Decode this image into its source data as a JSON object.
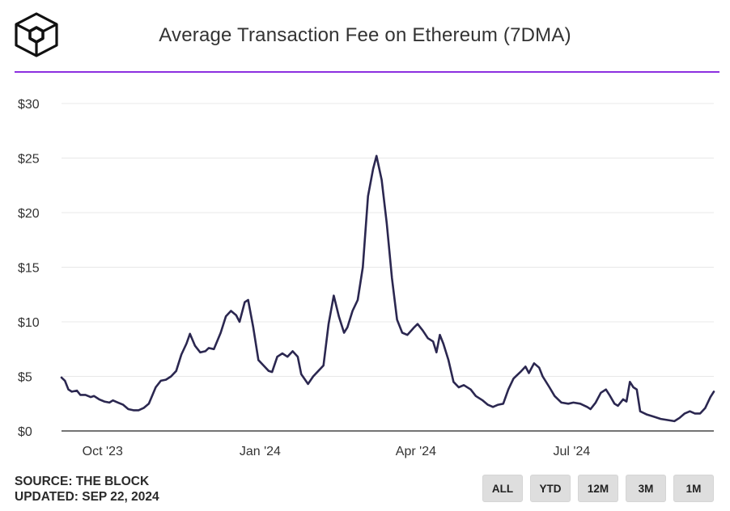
{
  "header": {
    "title": "Average Transaction Fee on Ethereum (7DMA)",
    "logo": "the-block-cube-logo"
  },
  "footer": {
    "source": "SOURCE: THE BLOCK",
    "updated": "UPDATED: SEP 22, 2024"
  },
  "range_buttons": [
    "ALL",
    "YTD",
    "12M",
    "3M",
    "1M"
  ],
  "colors": {
    "accent": "#8c2fe0",
    "line": "#2b2750",
    "grid": "#e8e8e8"
  },
  "chart_data": {
    "type": "line",
    "title": "Average Transaction Fee on Ethereum (7DMA)",
    "x_start": "2023-09-07",
    "x_end": "2024-09-22",
    "ylim": [
      0,
      30
    ],
    "y_ticks": [
      0,
      5,
      10,
      15,
      20,
      25,
      30
    ],
    "y_tick_labels": [
      "$0",
      "$5",
      "$10",
      "$15",
      "$20",
      "$25",
      "$30"
    ],
    "x_ticks": [
      {
        "date": "2023-10-01",
        "label": "Oct '23"
      },
      {
        "date": "2024-01-01",
        "label": "Jan '24"
      },
      {
        "date": "2024-04-01",
        "label": "Apr '24"
      },
      {
        "date": "2024-07-01",
        "label": "Jul '24"
      }
    ],
    "grid": "horizontal",
    "series": [
      {
        "points": [
          [
            "2023-09-07",
            4.9
          ],
          [
            "2023-09-09",
            4.6
          ],
          [
            "2023-09-11",
            3.8
          ],
          [
            "2023-09-13",
            3.6
          ],
          [
            "2023-09-16",
            3.7
          ],
          [
            "2023-09-18",
            3.3
          ],
          [
            "2023-09-21",
            3.3
          ],
          [
            "2023-09-24",
            3.1
          ],
          [
            "2023-09-26",
            3.2
          ],
          [
            "2023-09-29",
            2.9
          ],
          [
            "2023-10-02",
            2.7
          ],
          [
            "2023-10-05",
            2.6
          ],
          [
            "2023-10-07",
            2.8
          ],
          [
            "2023-10-10",
            2.6
          ],
          [
            "2023-10-13",
            2.4
          ],
          [
            "2023-10-16",
            2.0
          ],
          [
            "2023-10-19",
            1.9
          ],
          [
            "2023-10-22",
            1.9
          ],
          [
            "2023-10-25",
            2.1
          ],
          [
            "2023-10-28",
            2.5
          ],
          [
            "2023-11-01",
            4.0
          ],
          [
            "2023-11-04",
            4.6
          ],
          [
            "2023-11-07",
            4.7
          ],
          [
            "2023-11-10",
            5.0
          ],
          [
            "2023-11-13",
            5.5
          ],
          [
            "2023-11-16",
            7.0
          ],
          [
            "2023-11-19",
            8.0
          ],
          [
            "2023-11-21",
            8.9
          ],
          [
            "2023-11-24",
            7.8
          ],
          [
            "2023-11-27",
            7.2
          ],
          [
            "2023-11-30",
            7.3
          ],
          [
            "2023-12-02",
            7.6
          ],
          [
            "2023-12-05",
            7.5
          ],
          [
            "2023-12-09",
            9.0
          ],
          [
            "2023-12-12",
            10.5
          ],
          [
            "2023-12-15",
            11.0
          ],
          [
            "2023-12-18",
            10.6
          ],
          [
            "2023-12-20",
            10.0
          ],
          [
            "2023-12-23",
            11.8
          ],
          [
            "2023-12-25",
            12.0
          ],
          [
            "2023-12-28",
            9.5
          ],
          [
            "2023-12-31",
            6.5
          ],
          [
            "2024-01-03",
            6.0
          ],
          [
            "2024-01-06",
            5.5
          ],
          [
            "2024-01-08",
            5.4
          ],
          [
            "2024-01-11",
            6.8
          ],
          [
            "2024-01-14",
            7.1
          ],
          [
            "2024-01-17",
            6.8
          ],
          [
            "2024-01-20",
            7.3
          ],
          [
            "2024-01-23",
            6.8
          ],
          [
            "2024-01-25",
            5.2
          ],
          [
            "2024-01-29",
            4.3
          ],
          [
            "2024-02-01",
            5.0
          ],
          [
            "2024-02-04",
            5.5
          ],
          [
            "2024-02-07",
            6.0
          ],
          [
            "2024-02-10",
            9.8
          ],
          [
            "2024-02-13",
            12.4
          ],
          [
            "2024-02-16",
            10.5
          ],
          [
            "2024-02-19",
            9.0
          ],
          [
            "2024-02-21",
            9.5
          ],
          [
            "2024-02-24",
            11.0
          ],
          [
            "2024-02-27",
            12.0
          ],
          [
            "2024-03-01",
            15.0
          ],
          [
            "2024-03-04",
            21.5
          ],
          [
            "2024-03-07",
            24.0
          ],
          [
            "2024-03-09",
            25.2
          ],
          [
            "2024-03-12",
            23.0
          ],
          [
            "2024-03-15",
            19.0
          ],
          [
            "2024-03-18",
            14.0
          ],
          [
            "2024-03-21",
            10.2
          ],
          [
            "2024-03-24",
            9.0
          ],
          [
            "2024-03-27",
            8.8
          ],
          [
            "2024-03-31",
            9.5
          ],
          [
            "2024-04-02",
            9.8
          ],
          [
            "2024-04-05",
            9.2
          ],
          [
            "2024-04-08",
            8.5
          ],
          [
            "2024-04-11",
            8.2
          ],
          [
            "2024-04-13",
            7.2
          ],
          [
            "2024-04-15",
            8.8
          ],
          [
            "2024-04-17",
            8.0
          ],
          [
            "2024-04-20",
            6.5
          ],
          [
            "2024-04-23",
            4.5
          ],
          [
            "2024-04-26",
            4.0
          ],
          [
            "2024-04-29",
            4.2
          ],
          [
            "2024-05-03",
            3.8
          ],
          [
            "2024-05-06",
            3.2
          ],
          [
            "2024-05-10",
            2.8
          ],
          [
            "2024-05-13",
            2.4
          ],
          [
            "2024-05-16",
            2.2
          ],
          [
            "2024-05-19",
            2.4
          ],
          [
            "2024-05-22",
            2.5
          ],
          [
            "2024-05-25",
            3.8
          ],
          [
            "2024-05-28",
            4.8
          ],
          [
            "2024-06-01",
            5.4
          ],
          [
            "2024-06-04",
            5.9
          ],
          [
            "2024-06-06",
            5.3
          ],
          [
            "2024-06-09",
            6.2
          ],
          [
            "2024-06-12",
            5.8
          ],
          [
            "2024-06-14",
            5.0
          ],
          [
            "2024-06-18",
            4.0
          ],
          [
            "2024-06-21",
            3.2
          ],
          [
            "2024-06-25",
            2.6
          ],
          [
            "2024-06-29",
            2.5
          ],
          [
            "2024-07-02",
            2.6
          ],
          [
            "2024-07-06",
            2.5
          ],
          [
            "2024-07-10",
            2.2
          ],
          [
            "2024-07-12",
            2.0
          ],
          [
            "2024-07-15",
            2.6
          ],
          [
            "2024-07-18",
            3.5
          ],
          [
            "2024-07-21",
            3.8
          ],
          [
            "2024-07-23",
            3.3
          ],
          [
            "2024-07-26",
            2.5
          ],
          [
            "2024-07-28",
            2.3
          ],
          [
            "2024-07-31",
            2.9
          ],
          [
            "2024-08-02",
            2.7
          ],
          [
            "2024-08-04",
            4.5
          ],
          [
            "2024-08-06",
            4.0
          ],
          [
            "2024-08-08",
            3.8
          ],
          [
            "2024-08-10",
            1.8
          ],
          [
            "2024-08-14",
            1.5
          ],
          [
            "2024-08-18",
            1.3
          ],
          [
            "2024-08-22",
            1.1
          ],
          [
            "2024-08-26",
            1.0
          ],
          [
            "2024-08-30",
            0.9
          ],
          [
            "2024-09-02",
            1.2
          ],
          [
            "2024-09-05",
            1.6
          ],
          [
            "2024-09-08",
            1.8
          ],
          [
            "2024-09-11",
            1.6
          ],
          [
            "2024-09-14",
            1.6
          ],
          [
            "2024-09-17",
            2.1
          ],
          [
            "2024-09-20",
            3.1
          ],
          [
            "2024-09-22",
            3.6
          ]
        ]
      }
    ]
  }
}
